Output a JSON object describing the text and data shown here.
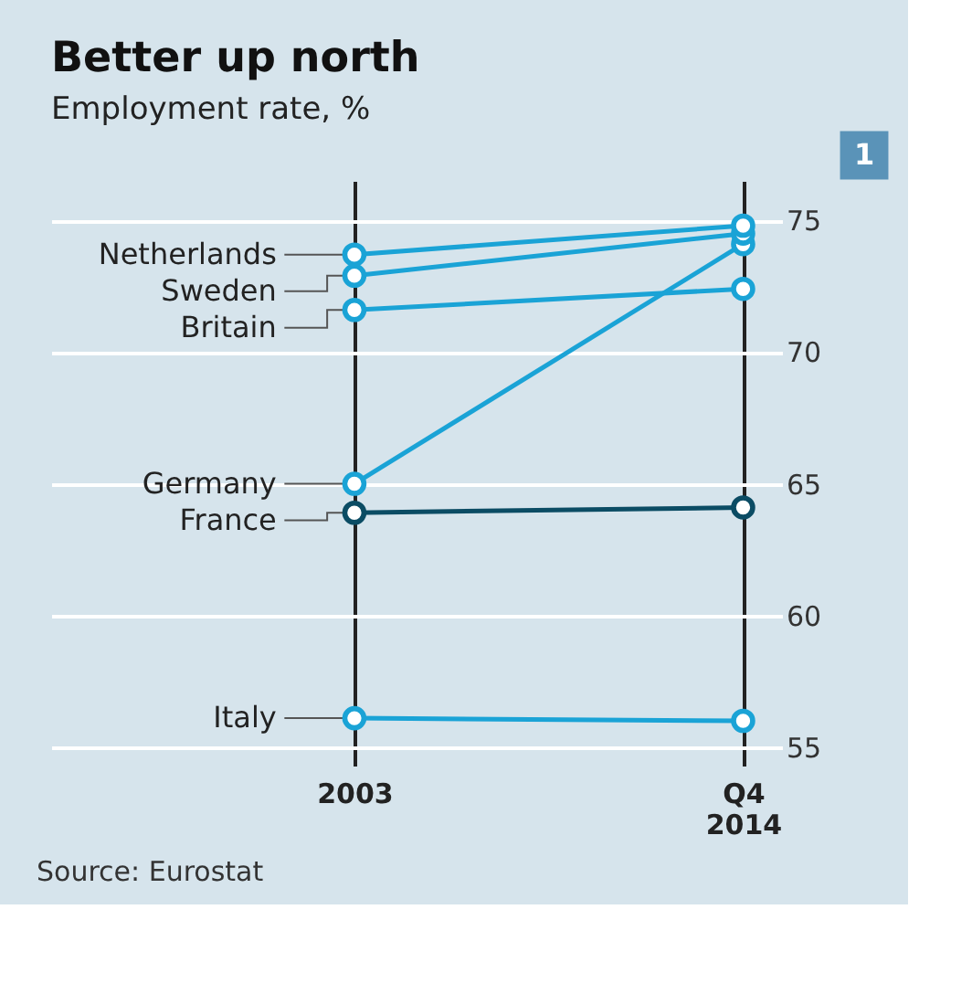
{
  "chart_data": {
    "type": "line",
    "title": "Better up north",
    "subtitle": "Employment rate, %",
    "categories": [
      "2003",
      "Q4 2014"
    ],
    "series": [
      {
        "name": "Netherlands",
        "color": "#1aa3d6",
        "values": [
          73.7,
          74.8
        ]
      },
      {
        "name": "Sweden",
        "color": "#1aa3d6",
        "values": [
          72.9,
          74.5
        ]
      },
      {
        "name": "Britain",
        "color": "#1aa3d6",
        "values": [
          71.6,
          72.4
        ]
      },
      {
        "name": "Germany",
        "color": "#1aa3d6",
        "values": [
          65.0,
          74.1
        ]
      },
      {
        "name": "France",
        "color": "#0b4c64",
        "values": [
          63.9,
          64.1
        ]
      },
      {
        "name": "Italy",
        "color": "#1aa3d6",
        "values": [
          56.1,
          56.0
        ]
      }
    ],
    "ylim": [
      54.3,
      76.5
    ],
    "yticks": [
      55,
      60,
      65,
      70,
      75
    ],
    "grid": true,
    "marker": "circle",
    "annotations": [
      "1",
      "Source: Eurostat"
    ]
  }
}
